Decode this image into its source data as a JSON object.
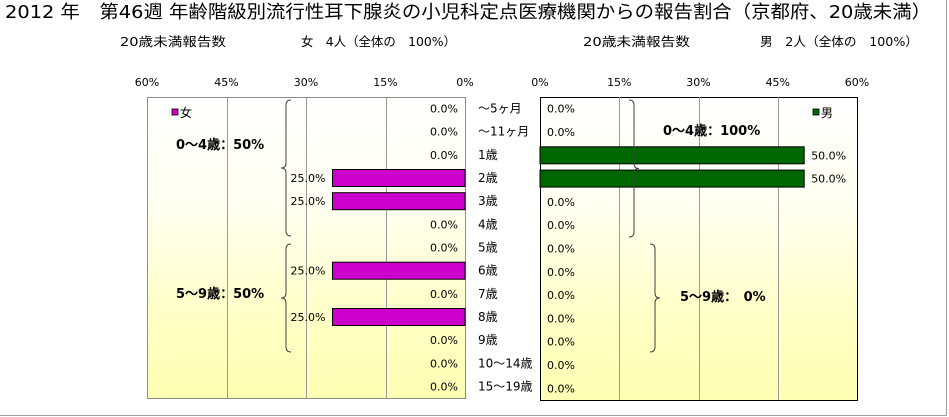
{
  "chart_data": {
    "type": "bar",
    "title": "2012 年　第46週 年齢階級別流行性耳下腺炎の小児科定点医療機関からの報告割合（京都府、20歳未満）",
    "categories": [
      "～5ヶ月",
      "～11ヶ月",
      "1歳",
      "2歳",
      "3歳",
      "4歳",
      "5歳",
      "6歳",
      "7歳",
      "8歳",
      "9歳",
      "10～14歳",
      "15～19歳"
    ],
    "xlim": [
      0,
      60
    ],
    "ticks": [
      0,
      15,
      30,
      45,
      60
    ],
    "grid": true,
    "legend": "top-inside",
    "series": [
      {
        "name": "女",
        "side": "left",
        "color": "#cc00cc",
        "summary_caption": "20歳未満報告数",
        "summary": "女　4人（全体の　100%）",
        "tick_labels": [
          "0%",
          "15%",
          "30%",
          "45%",
          "60%"
        ],
        "values": [
          0,
          0,
          0,
          25,
          25,
          0,
          0,
          25,
          0,
          25,
          0,
          0,
          0
        ],
        "labels": [
          "0.0%",
          "0.0%",
          "0.0%",
          "25.0%",
          "25.0%",
          "0.0%",
          "0.0%",
          "25.0%",
          "0.0%",
          "25.0%",
          "0.0%",
          "0.0%",
          "0.0%"
        ],
        "groups": [
          {
            "label": "0～4歳：50%",
            "from": 0,
            "to": 5
          },
          {
            "label": "5～9歳：50%",
            "from": 6,
            "to": 10
          }
        ]
      },
      {
        "name": "男",
        "side": "right",
        "color": "#006600",
        "summary_caption": "20歳未満報告数",
        "summary": "男　2人（全体の　100%）",
        "tick_labels": [
          "0%",
          "15%",
          "30%",
          "45%",
          "60%"
        ],
        "values": [
          0,
          0,
          50,
          50,
          0,
          0,
          0,
          0,
          0,
          0,
          0,
          0,
          0
        ],
        "labels": [
          "0.0%",
          "0.0%",
          "50.0%",
          "50.0%",
          "0.0%",
          "0.0%",
          "0.0%",
          "0.0%",
          "0.0%",
          "0.0%",
          "0.0%",
          "0.0%",
          "0.0%"
        ],
        "groups": [
          {
            "label": "0～4歳：100%",
            "from": 0,
            "to": 5
          },
          {
            "label": "5～9歳：　0%",
            "from": 6,
            "to": 10
          }
        ]
      }
    ]
  }
}
